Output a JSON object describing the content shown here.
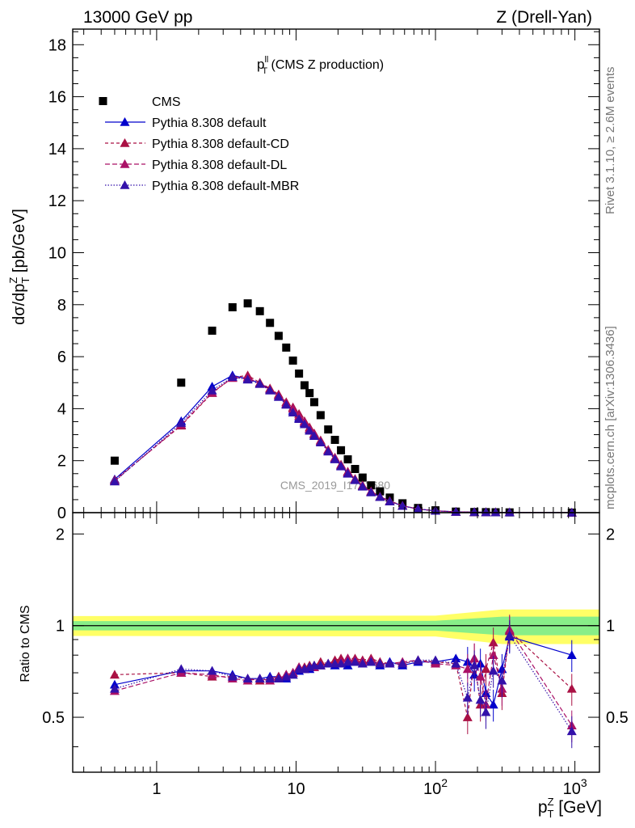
{
  "header": {
    "left": "13000 GeV pp",
    "right": "Z (Drell-Yan)"
  },
  "side_text": {
    "top": "Rivet 3.1.10, ≥ 2.6M events",
    "bottom": "mcplots.cern.ch [arXiv:1306.3436]"
  },
  "watermark": "CMS_2019_I1753680",
  "plot_title": {
    "main": "p",
    "sup": "ll",
    "sub": "T",
    "rest": " (CMS Z production)"
  },
  "chart_data": [
    {
      "type": "scatter",
      "title": "p_T^ll (CMS Z production)",
      "ylabel": "dσ/dp_T^Z [pb/GeV]",
      "xscale": "log",
      "xlim": [
        0.25,
        1500
      ],
      "ylim": [
        0,
        18.6
      ],
      "yticks": [
        "0",
        "2",
        "4",
        "6",
        "8",
        "10",
        "12",
        "14",
        "16",
        "18"
      ],
      "legend_position": "top-left",
      "x": [
        0.5,
        1.5,
        2.5,
        3.5,
        4.5,
        5.5,
        6.5,
        7.5,
        8.5,
        9.5,
        10.5,
        11.5,
        12.5,
        13.5,
        15,
        17,
        19,
        21,
        23.5,
        26.5,
        30,
        34.5,
        40,
        47,
        58,
        75,
        100,
        140,
        190,
        230,
        270,
        340,
        950
      ],
      "series": [
        {
          "name": "CMS",
          "color": "#000000",
          "marker": "square",
          "values": [
            2.0,
            5.0,
            7.0,
            7.9,
            8.05,
            7.75,
            7.3,
            6.8,
            6.35,
            5.85,
            5.35,
            4.9,
            4.6,
            4.25,
            3.75,
            3.2,
            2.8,
            2.4,
            2.05,
            1.68,
            1.35,
            1.05,
            0.82,
            0.58,
            0.36,
            0.18,
            0.09,
            0.04,
            0.025,
            0.02,
            0.015,
            0.01,
            0.002
          ]
        },
        {
          "name": "Pythia 8.308 default",
          "color": "#0000cc",
          "marker": "triangle",
          "dash": "solid",
          "values": [
            1.28,
            3.52,
            4.85,
            5.28,
            5.15,
            4.98,
            4.75,
            4.5,
            4.18,
            3.92,
            3.65,
            3.45,
            3.2,
            3.0,
            2.75,
            2.38,
            2.08,
            1.8,
            1.52,
            1.27,
            1.02,
            0.8,
            0.6,
            0.44,
            0.26,
            0.14,
            0.07,
            0.03,
            0.018,
            0.014,
            0.011,
            0.008,
            0.0016
          ]
        },
        {
          "name": "Pythia 8.308 default-CD",
          "color": "#aa1144",
          "marker": "triangle",
          "dash": "4,3",
          "values": [
            1.25,
            3.35,
            4.6,
            5.2,
            5.28,
            5.0,
            4.78,
            4.55,
            4.25,
            4.05,
            3.8,
            3.52,
            3.28,
            3.05,
            2.78,
            2.42,
            2.12,
            1.85,
            1.58,
            1.3,
            1.05,
            0.82,
            0.62,
            0.45,
            0.27,
            0.14,
            0.07,
            0.03,
            0.018,
            0.014,
            0.011,
            0.008,
            0.0016
          ]
        },
        {
          "name": "Pythia 8.308 default-DL",
          "color": "#aa1166",
          "marker": "triangle",
          "dash": "6,3",
          "values": [
            1.22,
            3.38,
            4.62,
            5.18,
            5.2,
            4.95,
            4.72,
            4.5,
            4.2,
            4.0,
            3.72,
            3.48,
            3.22,
            3.02,
            2.74,
            2.4,
            2.1,
            1.82,
            1.55,
            1.28,
            1.03,
            0.8,
            0.6,
            0.44,
            0.26,
            0.14,
            0.07,
            0.03,
            0.018,
            0.014,
            0.011,
            0.008,
            0.0016
          ]
        },
        {
          "name": "Pythia 8.308 default-MBR",
          "color": "#3311aa",
          "marker": "triangle",
          "dash": "1.5,2",
          "values": [
            1.2,
            3.45,
            4.7,
            5.22,
            5.12,
            4.95,
            4.7,
            4.45,
            4.15,
            3.85,
            3.6,
            3.4,
            3.15,
            2.95,
            2.7,
            2.35,
            2.05,
            1.78,
            1.5,
            1.25,
            1.0,
            0.78,
            0.6,
            0.43,
            0.26,
            0.14,
            0.07,
            0.03,
            0.018,
            0.014,
            0.011,
            0.008,
            0.0016
          ]
        }
      ]
    },
    {
      "type": "scatter",
      "ylabel": "Ratio to CMS",
      "xlabel": "p_T^Z [GeV]",
      "xscale": "log",
      "xlim": [
        0.25,
        1500
      ],
      "ylim": [
        0.33,
        2.35
      ],
      "yscale": "log",
      "yticks": [
        "0.5",
        "1",
        "2"
      ],
      "xticks": [
        "1",
        "10",
        "10^2",
        "10^3"
      ],
      "band_inner_color": "#88ee88",
      "band_outer_color": "#ffff66",
      "x": [
        0.5,
        1.5,
        2.5,
        3.5,
        4.5,
        5.5,
        6.5,
        7.5,
        8.5,
        9.5,
        10.5,
        11.5,
        12.5,
        13.5,
        15,
        17,
        19,
        21,
        23.5,
        26.5,
        30,
        34.5,
        40,
        47,
        58,
        75,
        100,
        140,
        170,
        190,
        210,
        230,
        260,
        300,
        340,
        950
      ],
      "series": [
        {
          "name": "Pythia 8.308 default",
          "color": "#0000cc",
          "dash": "solid",
          "values": [
            0.64,
            0.71,
            0.71,
            0.69,
            0.67,
            0.67,
            0.68,
            0.68,
            0.67,
            0.69,
            0.71,
            0.72,
            0.72,
            0.73,
            0.74,
            0.75,
            0.74,
            0.75,
            0.74,
            0.76,
            0.75,
            0.76,
            0.74,
            0.76,
            0.74,
            0.76,
            0.76,
            0.78,
            0.76,
            0.69,
            0.75,
            0.6,
            0.55,
            0.72,
            0.92,
            0.8
          ]
        },
        {
          "name": "Pythia 8.308 default-CD",
          "color": "#aa1144",
          "dash": "4,3",
          "values": [
            0.69,
            0.7,
            0.68,
            0.68,
            0.67,
            0.66,
            0.67,
            0.68,
            0.69,
            0.7,
            0.73,
            0.73,
            0.74,
            0.74,
            0.76,
            0.75,
            0.77,
            0.78,
            0.78,
            0.78,
            0.77,
            0.78,
            0.76,
            0.75,
            0.75,
            0.77,
            0.76,
            0.75,
            0.5,
            0.78,
            0.55,
            0.72,
            0.88,
            0.6,
            0.96,
            0.62
          ]
        },
        {
          "name": "Pythia 8.308 default-DL",
          "color": "#aa1166",
          "dash": "6,3",
          "values": [
            0.61,
            0.7,
            0.69,
            0.67,
            0.66,
            0.67,
            0.66,
            0.67,
            0.69,
            0.7,
            0.73,
            0.72,
            0.73,
            0.73,
            0.74,
            0.75,
            0.75,
            0.76,
            0.78,
            0.77,
            0.76,
            0.77,
            0.75,
            0.75,
            0.76,
            0.77,
            0.75,
            0.74,
            0.72,
            0.78,
            0.68,
            0.55,
            0.8,
            0.62,
            0.97,
            0.47
          ]
        },
        {
          "name": "Pythia 8.308 default-MBR",
          "color": "#3311aa",
          "dash": "1.5,2",
          "values": [
            0.62,
            0.72,
            0.71,
            0.68,
            0.67,
            0.67,
            0.67,
            0.67,
            0.68,
            0.69,
            0.72,
            0.72,
            0.73,
            0.74,
            0.74,
            0.75,
            0.75,
            0.75,
            0.76,
            0.76,
            0.75,
            0.76,
            0.75,
            0.75,
            0.75,
            0.77,
            0.77,
            0.75,
            0.58,
            0.74,
            0.57,
            0.52,
            0.71,
            0.66,
            0.93,
            0.45
          ]
        }
      ]
    }
  ]
}
